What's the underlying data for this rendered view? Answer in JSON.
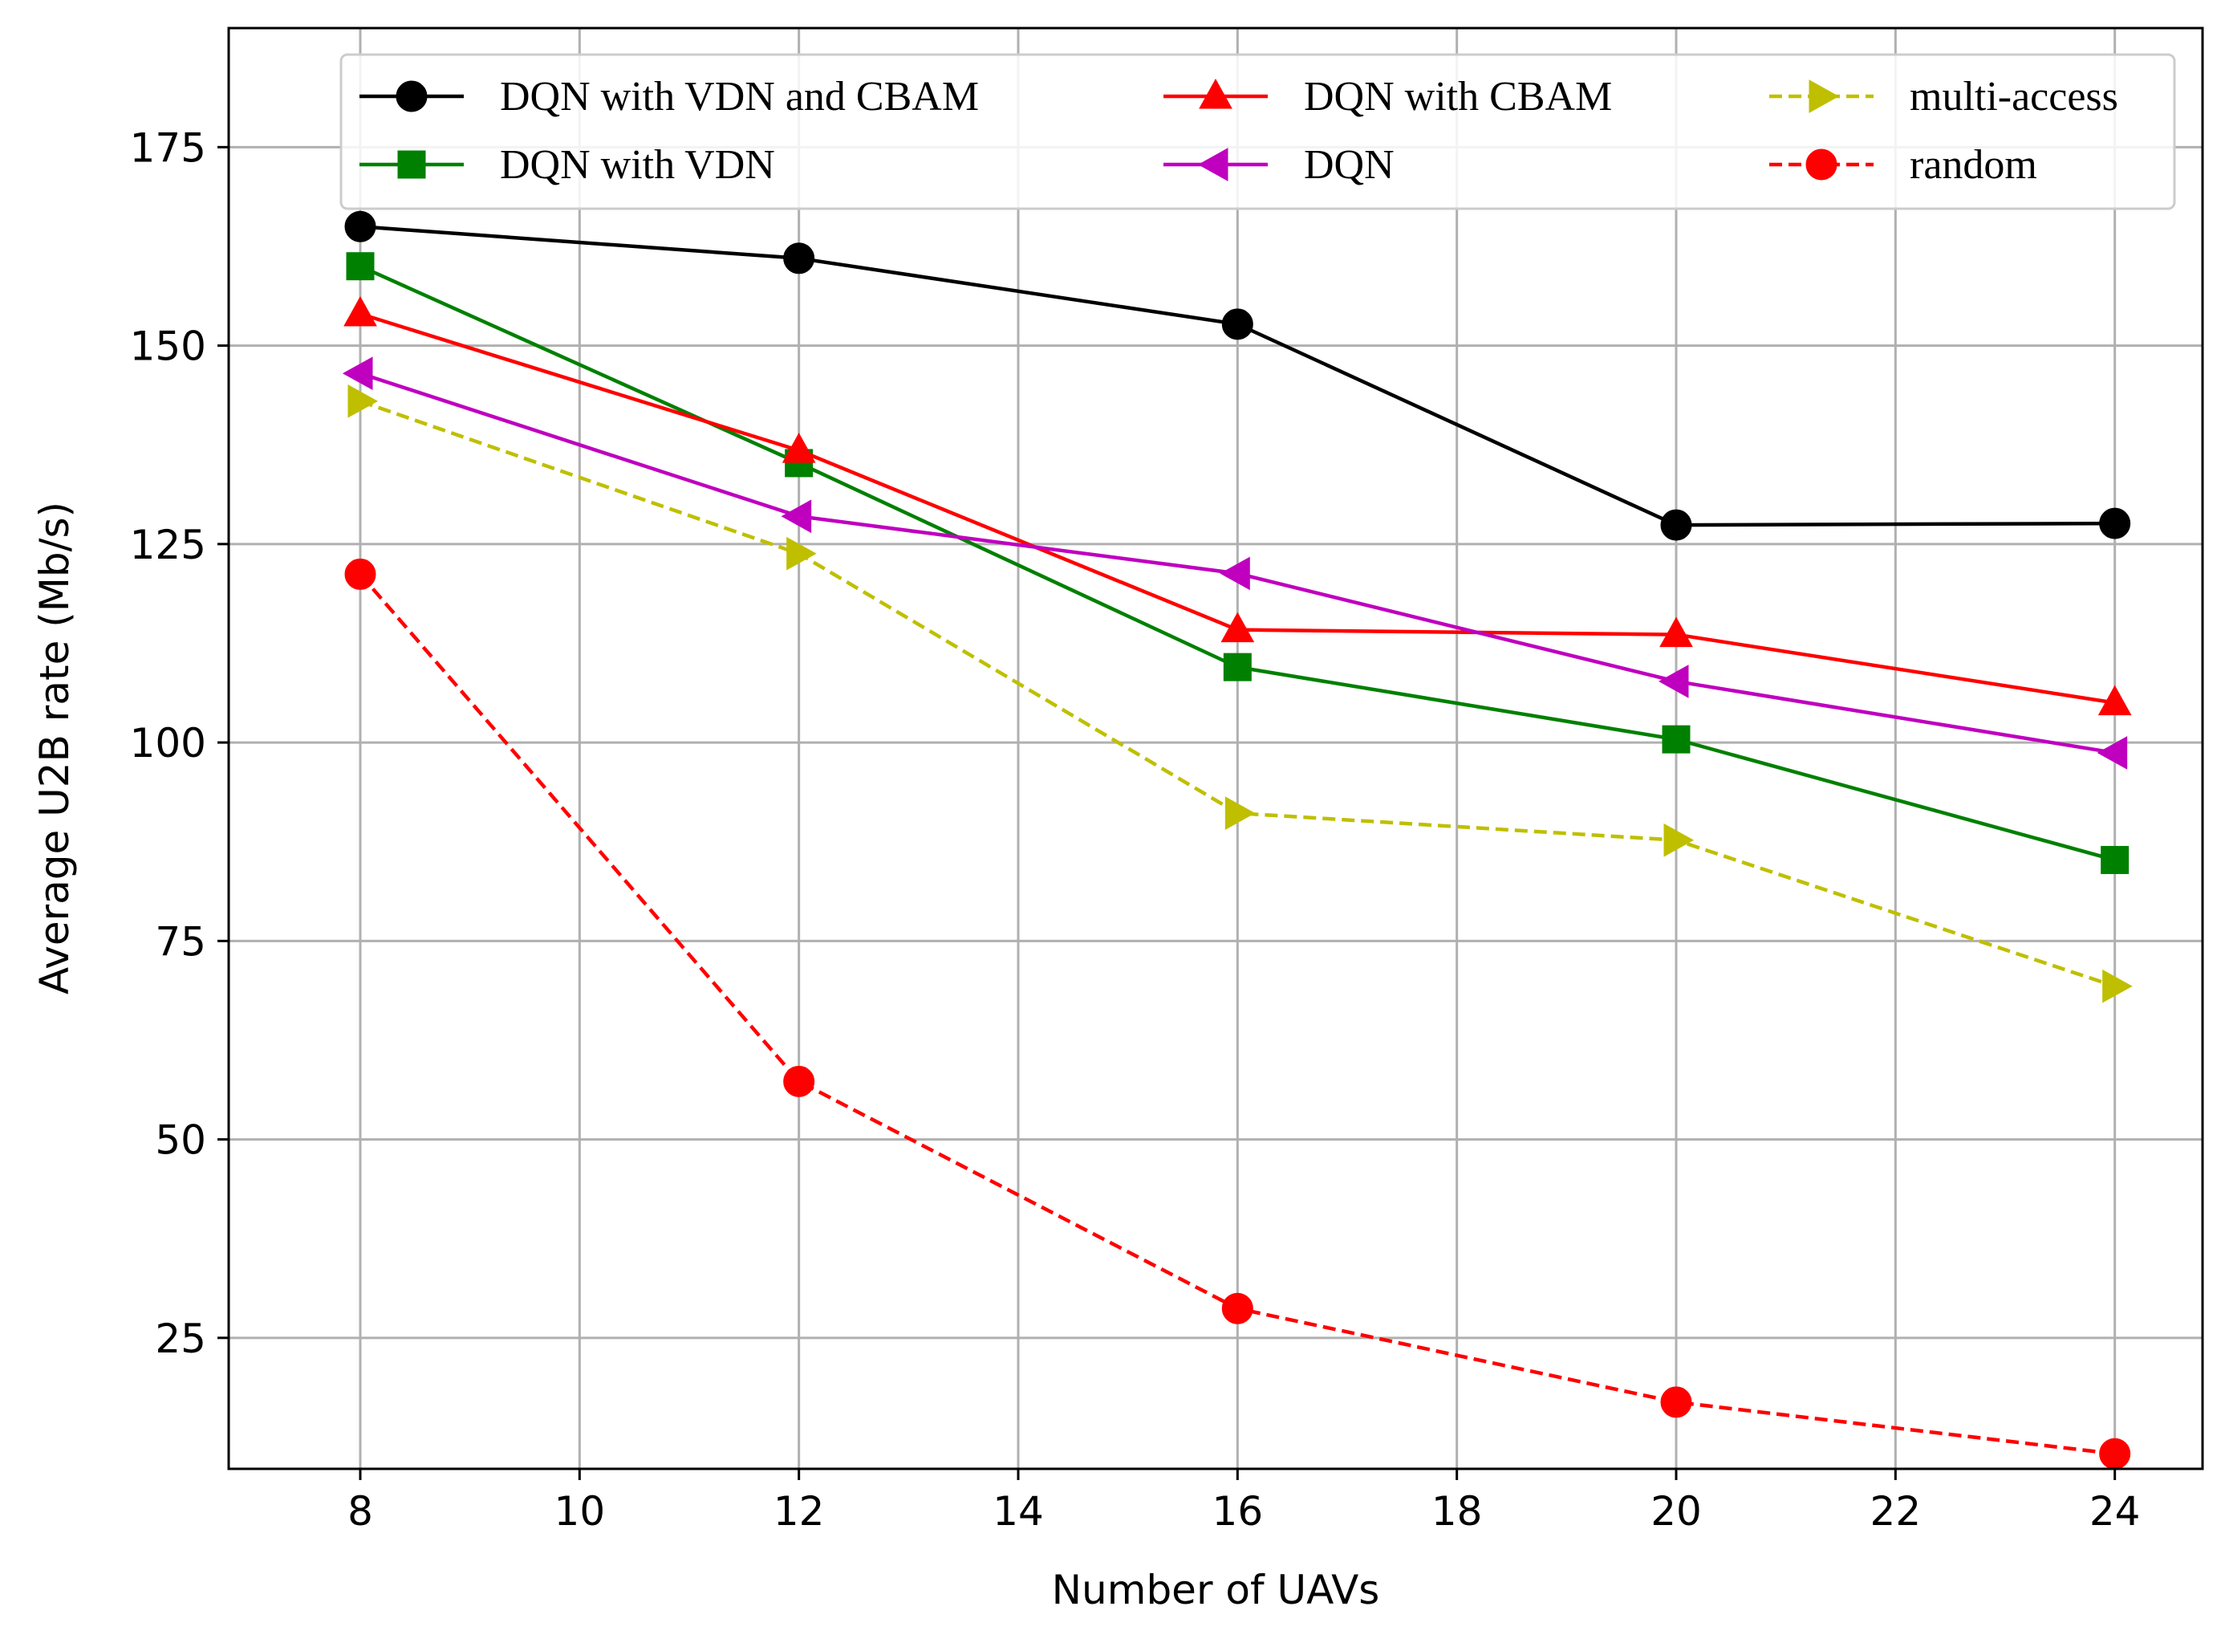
{
  "chart_data": {
    "type": "line",
    "xlabel": "Number of UAVs",
    "ylabel": "Average U2B rate (Mb/s)",
    "xlim": [
      6.8,
      24.8
    ],
    "ylim": [
      8.5,
      190
    ],
    "xticks": [
      8,
      10,
      12,
      14,
      16,
      18,
      20,
      22,
      24
    ],
    "yticks": [
      25,
      50,
      75,
      100,
      125,
      150,
      175
    ],
    "grid": true,
    "legend_position": "top",
    "legend_columns": 3,
    "x": [
      8,
      12,
      16,
      20,
      24
    ],
    "series": [
      {
        "name": "DQN with VDN and CBAM",
        "values": [
          165.0,
          161.0,
          152.7,
          127.4,
          127.6
        ],
        "color": "#000000",
        "marker": "circle",
        "dash": "solid"
      },
      {
        "name": "DQN with VDN",
        "values": [
          160.0,
          135.2,
          109.5,
          100.4,
          85.2
        ],
        "color": "#008000",
        "marker": "square",
        "dash": "solid"
      },
      {
        "name": "DQN with CBAM",
        "values": [
          154.0,
          136.8,
          114.2,
          113.6,
          105.0
        ],
        "color": "#ff0000",
        "marker": "triangle-up",
        "dash": "solid"
      },
      {
        "name": "DQN",
        "values": [
          146.5,
          128.5,
          121.3,
          107.7,
          98.7
        ],
        "color": "#bf00bf",
        "marker": "triangle-left",
        "dash": "solid"
      },
      {
        "name": "multi-access",
        "values": [
          143.0,
          123.8,
          91.1,
          87.7,
          69.3
        ],
        "color": "#bfbf00",
        "marker": "triangle-right",
        "dash": "dashed"
      },
      {
        "name": "random",
        "values": [
          121.2,
          57.3,
          28.7,
          16.9,
          10.4
        ],
        "color": "#ff0000",
        "marker": "circle",
        "dash": "dashed"
      }
    ]
  }
}
